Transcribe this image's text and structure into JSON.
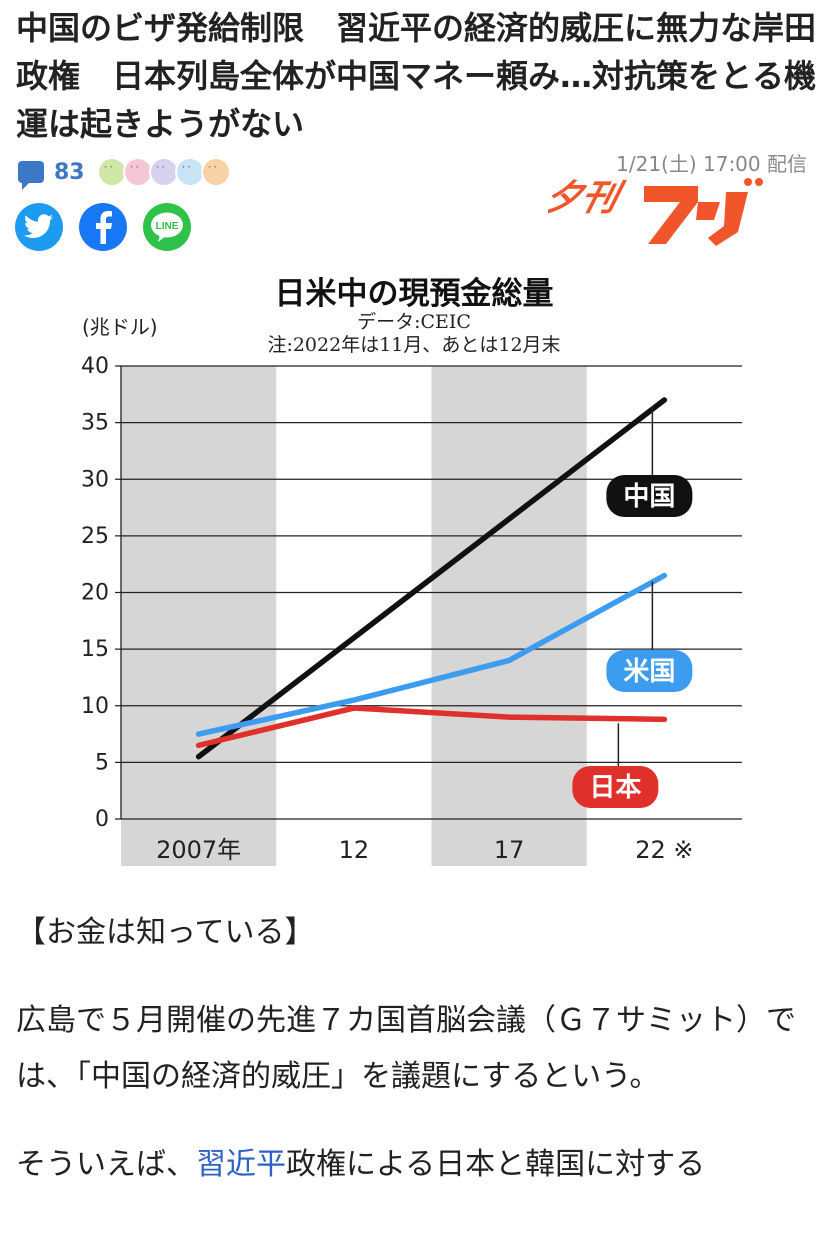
{
  "article": {
    "headline": "中国のビザ発給制限　習近平の経済的威圧に無力な岸田政権　日本列島全体が中国マネー頼み…対抗策をとる機運は起きようがない",
    "comment_count": "83",
    "date": "1/21(土) 17:00 配信",
    "publisher_logo_text": "夕刊フジ"
  },
  "reactions": {
    "colors": [
      "#cfe6a8",
      "#f5c6d6",
      "#d6d2f0",
      "#c6e4f5",
      "#f7d2a6"
    ]
  },
  "share": {
    "twitter": "twitter-icon",
    "facebook": "facebook-icon",
    "line": "LINE",
    "colors": {
      "twitter": "#1d9bf0",
      "facebook": "#1877f2",
      "line": "#2ec24a"
    }
  },
  "chart_data": {
    "type": "line",
    "title": "日米中の現預金総量",
    "source": "データ:CEIC",
    "note": "注:2022年は11月、あとは12月末",
    "ylabel": "(兆ドル)",
    "ylim": [
      0,
      40
    ],
    "yticks": [
      "0",
      "5",
      "10",
      "15",
      "20",
      "25",
      "30",
      "35",
      "40"
    ],
    "x": [
      2007,
      2012,
      2017,
      2022
    ],
    "xtick_labels": [
      "2007年",
      "12",
      "17",
      "22 ※"
    ],
    "series": [
      {
        "name": "中国",
        "color": "#111111",
        "values": [
          5.5,
          16,
          26.5,
          37
        ]
      },
      {
        "name": "米国",
        "color": "#3c9cf0",
        "values": [
          7.5,
          10.5,
          14,
          21.5
        ]
      },
      {
        "name": "日本",
        "color": "#e0302c",
        "values": [
          6.5,
          9.8,
          9.0,
          8.8
        ]
      }
    ],
    "grid": true
  },
  "body": {
    "section_heading": "【お金は知っている】",
    "para1": "広島で５月開催の先進７カ国首脳会議（Ｇ７サミット）では、「中国の経済的威圧」を議題にするという。",
    "para2_pre": "そういえば、",
    "para2_link": "習近平",
    "para2_post": "政権による日本と韓国に対する"
  }
}
